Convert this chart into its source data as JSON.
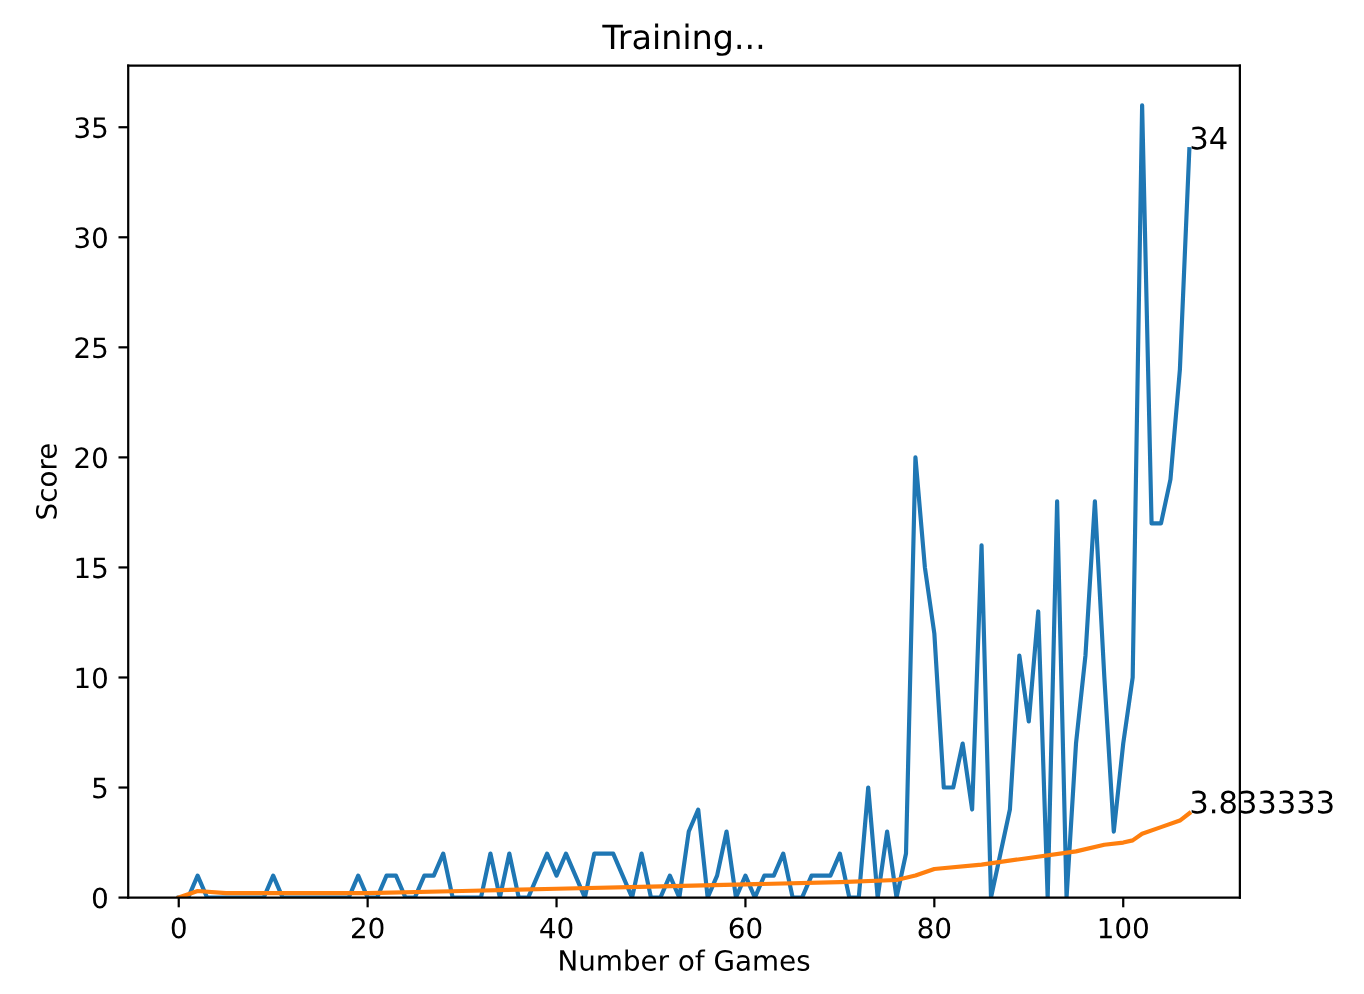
{
  "chart_data": {
    "type": "line",
    "title": "Training...",
    "xlabel": "Number of Games",
    "ylabel": "Score",
    "xlim": [
      -5.35,
      112.35
    ],
    "xticks": [
      0,
      20,
      40,
      60,
      80,
      100
    ],
    "ylim": [
      0,
      37.8
    ],
    "yticks": [
      0,
      5,
      10,
      15,
      20,
      25,
      30,
      35
    ],
    "series": [
      {
        "color": "#1f77b4",
        "x": [
          0,
          1,
          2,
          3,
          4,
          5,
          6,
          7,
          8,
          9,
          10,
          11,
          12,
          13,
          14,
          15,
          16,
          17,
          18,
          19,
          20,
          21,
          22,
          23,
          24,
          25,
          26,
          27,
          28,
          29,
          30,
          31,
          32,
          33,
          34,
          35,
          36,
          37,
          38,
          39,
          40,
          41,
          42,
          43,
          44,
          45,
          46,
          47,
          48,
          49,
          50,
          51,
          52,
          53,
          54,
          55,
          56,
          57,
          58,
          59,
          60,
          61,
          62,
          63,
          64,
          65,
          66,
          67,
          68,
          69,
          70,
          71,
          72,
          73,
          74,
          75,
          76,
          77,
          78,
          79,
          80,
          81,
          82,
          83,
          84,
          85,
          86,
          87,
          88,
          89,
          90,
          91,
          92,
          93,
          94,
          95,
          96,
          97,
          98,
          99,
          100,
          101,
          102,
          103,
          104,
          105,
          106,
          107
        ],
        "values": [
          0,
          0,
          1,
          0,
          0,
          0,
          0,
          0,
          0,
          0,
          1,
          0,
          0,
          0,
          0,
          0,
          0,
          0,
          0,
          1,
          0,
          0,
          1,
          1,
          0,
          0,
          1,
          1,
          2,
          0,
          0,
          0,
          0,
          2,
          0,
          2,
          0,
          0,
          1,
          2,
          1,
          2,
          1,
          0,
          2,
          2,
          2,
          1,
          0,
          2,
          0,
          0,
          1,
          0,
          3,
          4,
          0,
          1,
          3,
          0,
          1,
          0,
          1,
          1,
          2,
          0,
          0,
          1,
          1,
          1,
          2,
          0,
          0,
          5,
          0,
          3,
          0,
          2,
          20,
          15,
          12,
          5,
          5,
          7,
          4,
          16,
          0,
          2,
          4,
          11,
          8,
          13,
          0,
          18,
          0,
          7,
          11,
          18,
          10,
          3,
          7,
          10,
          36,
          17,
          17,
          19,
          24,
          34
        ]
      },
      {
        "color": "#ff7f0e",
        "x": [
          0,
          2,
          5,
          10,
          20,
          30,
          40,
          50,
          60,
          70,
          76,
          78,
          80,
          85,
          90,
          95,
          98,
          100,
          101,
          102,
          104,
          106,
          107
        ],
        "values": [
          0,
          0.3,
          0.2,
          0.2,
          0.2,
          0.3,
          0.4,
          0.5,
          0.6,
          0.7,
          0.8,
          1.0,
          1.3,
          1.5,
          1.8,
          2.1,
          2.4,
          2.5,
          2.6,
          2.9,
          3.2,
          3.5,
          3.83
        ]
      }
    ],
    "annotations": [
      {
        "text": "34",
        "x": 107,
        "y": 34
      },
      {
        "text": "3.833333",
        "x": 107,
        "y": 3.83
      }
    ]
  }
}
